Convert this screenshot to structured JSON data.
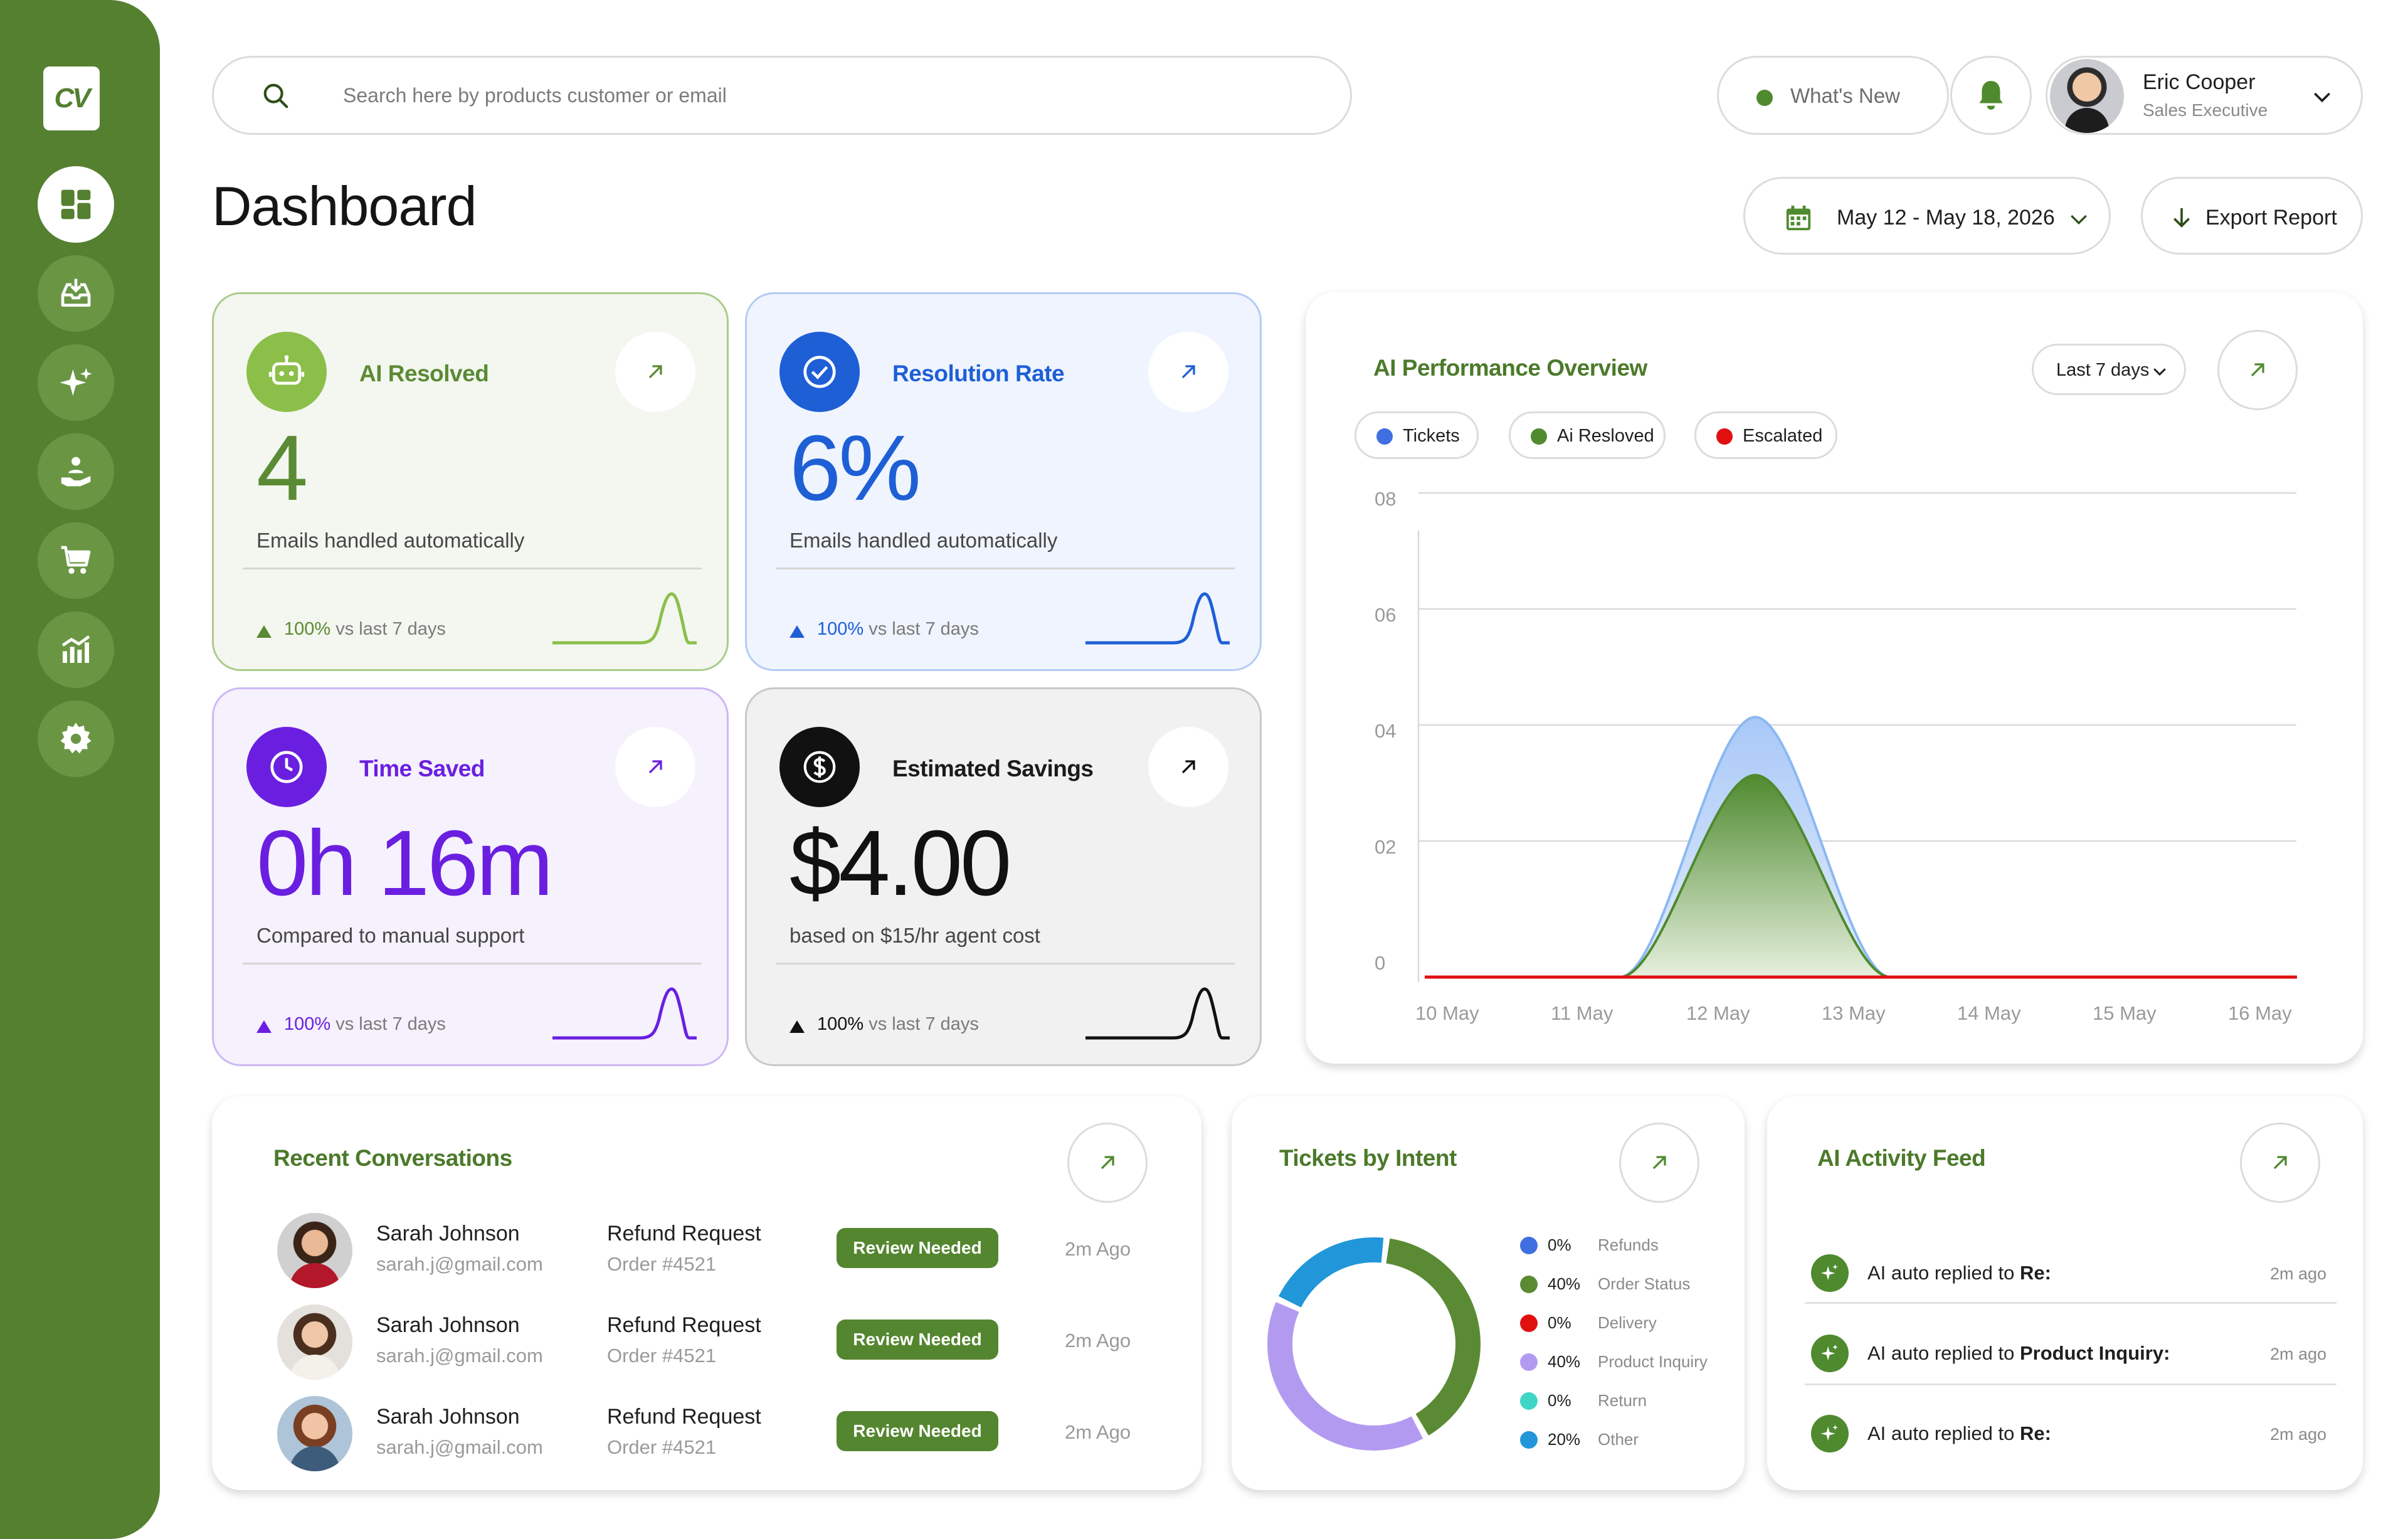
{
  "brand": {
    "logo_text": "CV",
    "accent": "#548030"
  },
  "sidebar": {
    "items": [
      {
        "name": "dashboard",
        "icon": "dashboard-grid-icon",
        "active": true
      },
      {
        "name": "inbox",
        "icon": "inbox-download-icon",
        "active": false
      },
      {
        "name": "ai",
        "icon": "sparkles-icon",
        "active": false
      },
      {
        "name": "support",
        "icon": "hand-user-icon",
        "active": false
      },
      {
        "name": "orders",
        "icon": "cart-icon",
        "active": false
      },
      {
        "name": "analytics",
        "icon": "bar-chart-icon",
        "active": false
      },
      {
        "name": "settings",
        "icon": "gear-icon",
        "active": false
      }
    ]
  },
  "search": {
    "placeholder": "Search here by products customer or email",
    "value": ""
  },
  "header": {
    "whats_new": "What's New",
    "user": {
      "name": "Eric Cooper",
      "role": "Sales Executive"
    },
    "title": "Dashboard",
    "date_range": "May 12 - May 18, 2026",
    "export_label": "Export Report"
  },
  "metrics": [
    {
      "title": "AI Resolved",
      "value": "4",
      "subtitle": "Emails handled automatically",
      "trend_pct": "100%",
      "trend_text": "vs last 7 days",
      "color": "#5b8a34",
      "icon": "robot-icon"
    },
    {
      "title": "Resolution Rate",
      "value": "6%",
      "subtitle": "Emails handled automatically",
      "trend_pct": "100%",
      "trend_text": "vs last 7 days",
      "color": "#1e5fd6",
      "icon": "check-circle-icon"
    },
    {
      "title": "Time Saved",
      "value": "0h 16m",
      "subtitle": "Compared to manual support",
      "trend_pct": "100%",
      "trend_text": "vs last 7 days",
      "color": "#6a1fe0",
      "icon": "clock-icon"
    },
    {
      "title": "Estimated Savings",
      "value": "$4.00",
      "subtitle": "based on $15/hr agent cost",
      "trend_pct": "100%",
      "trend_text": "vs last 7 days",
      "color": "#111111",
      "icon": "dollar-icon"
    }
  ],
  "performance": {
    "title": "AI Performance Overview",
    "range_label": "Last 7 days",
    "legend": [
      {
        "label": "Tickets",
        "color": "#3f6fe0"
      },
      {
        "label": "Ai Resloved",
        "color": "#4f8a2f"
      },
      {
        "label": "Escalated",
        "color": "#e01010"
      }
    ]
  },
  "chart_data": {
    "type": "area",
    "title": "AI Performance Overview",
    "x": [
      "10 May",
      "11 May",
      "12 May",
      "13 May",
      "14 May",
      "15 May",
      "16 May"
    ],
    "y_ticks": [
      "08",
      "06",
      "04",
      "02",
      "0"
    ],
    "ylim": [
      0,
      8
    ],
    "series": [
      {
        "name": "Tickets",
        "values": [
          0,
          0,
          5,
          0,
          0,
          0,
          0
        ],
        "color": "#3f6fe0"
      },
      {
        "name": "Ai Resloved",
        "values": [
          0,
          0,
          4,
          0,
          0,
          0,
          0
        ],
        "color": "#4f8a2f"
      },
      {
        "name": "Escalated",
        "values": [
          0,
          0,
          0,
          0,
          0,
          0,
          0
        ],
        "color": "#e01010"
      }
    ],
    "legend_position": "top-left",
    "grid": true
  },
  "conversations": {
    "title": "Recent Conversations",
    "rows": [
      {
        "name": "Sarah Johnson",
        "email": "sarah.j@gmail.com",
        "type": "Refund Request",
        "order": "Order #4521",
        "status": "Review Needed",
        "ago": "2m Ago"
      },
      {
        "name": "Sarah Johnson",
        "email": "sarah.j@gmail.com",
        "type": "Refund Request",
        "order": "Order #4521",
        "status": "Review Needed",
        "ago": "2m Ago"
      },
      {
        "name": "Sarah Johnson",
        "email": "sarah.j@gmail.com",
        "type": "Refund Request",
        "order": "Order #4521",
        "status": "Review Needed",
        "ago": "2m Ago"
      }
    ]
  },
  "intent": {
    "title": "Tickets by Intent",
    "items": [
      {
        "pct": "0%",
        "label": "Refunds",
        "color": "#3f6fe0",
        "value": 0
      },
      {
        "pct": "40%",
        "label": "Order Status",
        "color": "#5b8a34",
        "value": 40
      },
      {
        "pct": "0%",
        "label": "Delivery",
        "color": "#e01010",
        "value": 0
      },
      {
        "pct": "40%",
        "label": "Product Inquiry",
        "color": "#b39af1",
        "value": 40
      },
      {
        "pct": "0%",
        "label": "Return",
        "color": "#3fd6c8",
        "value": 0
      },
      {
        "pct": "20%",
        "label": "Other",
        "color": "#2196d8",
        "value": 20
      }
    ]
  },
  "feed": {
    "title": "AI Activity Feed",
    "items": [
      {
        "prefix": "AI auto replied to ",
        "subject": "Re:",
        "ago": "2m ago"
      },
      {
        "prefix": "AI auto replied to ",
        "subject": "Product Inquiry:",
        "ago": "2m ago"
      },
      {
        "prefix": "AI auto replied to ",
        "subject": "Re:",
        "ago": "2m ago"
      }
    ]
  }
}
